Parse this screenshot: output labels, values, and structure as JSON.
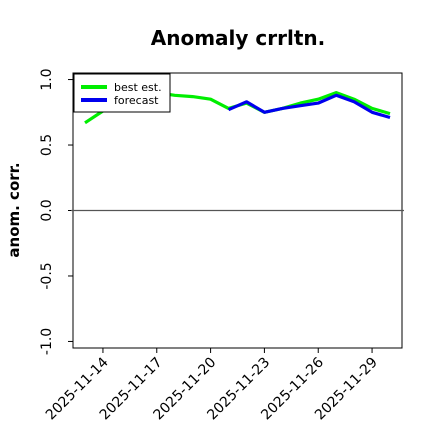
{
  "chart_data": {
    "type": "line",
    "title": "Anomaly crrltn.",
    "xlabel": "",
    "ylabel": "anom. corr.",
    "ylim": [
      -1.05,
      1.05
    ],
    "yticks": [
      -1.0,
      -0.5,
      0.0,
      0.5,
      1.0
    ],
    "ytick_labels": [
      "-1.0",
      "-0.5",
      "0.0",
      "0.5",
      "1.0"
    ],
    "x": [
      "2025-11-13",
      "2025-11-14",
      "2025-11-15",
      "2025-11-16",
      "2025-11-17",
      "2025-11-18",
      "2025-11-19",
      "2025-11-20",
      "2025-11-21",
      "2025-11-22",
      "2025-11-23",
      "2025-11-24",
      "2025-11-25",
      "2025-11-26",
      "2025-11-27",
      "2025-11-28",
      "2025-11-29",
      "2025-11-30"
    ],
    "xticks": [
      "2025-11-14",
      "2025-11-17",
      "2025-11-20",
      "2025-11-23",
      "2025-11-26",
      "2025-11-29"
    ],
    "highlight_tick": "2025-11-20",
    "highlight_color": "#008000",
    "reference_line": 0.0,
    "grid": false,
    "legend_position": "top-left",
    "series": [
      {
        "name": "best est.",
        "color": "#00ee00",
        "values": [
          0.67,
          0.76,
          0.87,
          0.89,
          0.9,
          0.88,
          0.87,
          0.85,
          0.78,
          0.82,
          0.75,
          0.78,
          0.82,
          0.85,
          0.9,
          0.85,
          0.78,
          0.74
        ]
      },
      {
        "name": "forecast",
        "color": "#0000ee",
        "values": [
          null,
          null,
          null,
          null,
          null,
          null,
          null,
          null,
          0.77,
          0.83,
          0.75,
          0.78,
          0.8,
          0.82,
          0.88,
          0.83,
          0.75,
          0.71
        ]
      }
    ]
  }
}
